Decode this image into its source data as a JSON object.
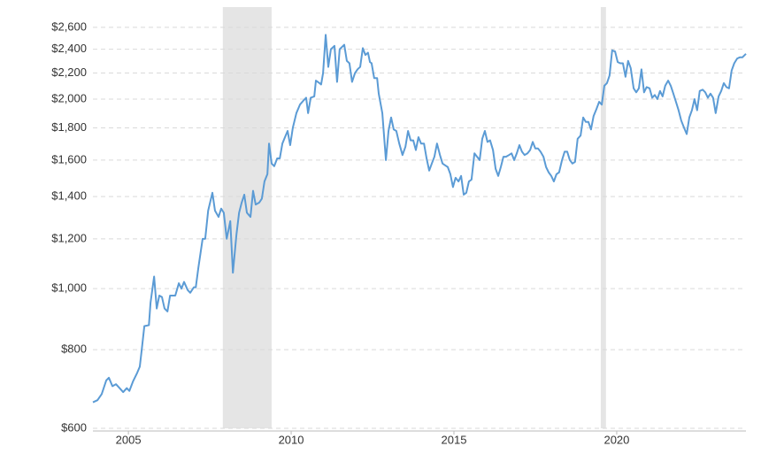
{
  "chart_data": {
    "type": "line",
    "log_scale": true,
    "grid": true,
    "color": "#5b9bd5",
    "band_color": "#e5e5e5",
    "xlim": [
      2003.91,
      2023.97
    ],
    "xticks": [
      2005,
      2010,
      2015,
      2020
    ],
    "ylim": [
      600,
      2800
    ],
    "yticks": [
      {
        "value": 600,
        "label": "$600"
      },
      {
        "value": 800,
        "label": "$800"
      },
      {
        "value": 1000,
        "label": "$1,000"
      },
      {
        "value": 1200,
        "label": "$1,200"
      },
      {
        "value": 1400,
        "label": "$1,400"
      },
      {
        "value": 1600,
        "label": "$1,600"
      },
      {
        "value": 1800,
        "label": "$1,800"
      },
      {
        "value": 2000,
        "label": "$2,000"
      },
      {
        "value": 2200,
        "label": "$2,200"
      },
      {
        "value": 2400,
        "label": "$2,400"
      },
      {
        "value": 2600,
        "label": "$2,600"
      }
    ],
    "shaded_ranges": [
      [
        2007.9,
        2009.4
      ],
      [
        2019.51,
        2019.67
      ]
    ],
    "x": [
      2003.91,
      2004.05,
      2004.18,
      2004.32,
      2004.4,
      2004.51,
      2004.62,
      2004.73,
      2004.84,
      2004.95,
      2005.03,
      2005.14,
      2005.27,
      2005.35,
      2005.41,
      2005.49,
      2005.63,
      2005.68,
      2005.79,
      2005.87,
      2005.95,
      2006.03,
      2006.11,
      2006.2,
      2006.28,
      2006.44,
      2006.55,
      2006.63,
      2006.71,
      2006.82,
      2006.9,
      2007.01,
      2007.07,
      2007.15,
      2007.28,
      2007.36,
      2007.45,
      2007.58,
      2007.66,
      2007.77,
      2007.85,
      2007.93,
      2008.02,
      2008.13,
      2008.21,
      2008.32,
      2008.4,
      2008.48,
      2008.56,
      2008.64,
      2008.75,
      2008.83,
      2008.91,
      2009.02,
      2009.1,
      2009.18,
      2009.27,
      2009.32,
      2009.4,
      2009.48,
      2009.57,
      2009.65,
      2009.73,
      2009.81,
      2009.89,
      2009.97,
      2010.05,
      2010.16,
      2010.27,
      2010.38,
      2010.46,
      2010.52,
      2010.6,
      2010.71,
      2010.76,
      2010.87,
      2010.92,
      2010.98,
      2011.06,
      2011.14,
      2011.22,
      2011.33,
      2011.41,
      2011.49,
      2011.63,
      2011.71,
      2011.79,
      2011.87,
      2011.96,
      2012.04,
      2012.12,
      2012.2,
      2012.28,
      2012.36,
      2012.42,
      2012.47,
      2012.55,
      2012.64,
      2012.69,
      2012.8,
      2012.91,
      2012.99,
      2013.07,
      2013.15,
      2013.23,
      2013.32,
      2013.42,
      2013.51,
      2013.59,
      2013.67,
      2013.75,
      2013.83,
      2013.91,
      2013.99,
      2014.08,
      2014.16,
      2014.24,
      2014.32,
      2014.4,
      2014.48,
      2014.57,
      2014.65,
      2014.73,
      2014.81,
      2014.89,
      2014.97,
      2015.05,
      2015.14,
      2015.22,
      2015.3,
      2015.38,
      2015.46,
      2015.54,
      2015.63,
      2015.71,
      2015.79,
      2015.87,
      2015.95,
      2016.03,
      2016.11,
      2016.2,
      2016.28,
      2016.36,
      2016.44,
      2016.52,
      2016.6,
      2016.69,
      2016.77,
      2016.85,
      2016.93,
      2017.01,
      2017.09,
      2017.17,
      2017.26,
      2017.34,
      2017.42,
      2017.5,
      2017.58,
      2017.66,
      2017.75,
      2017.83,
      2017.91,
      2017.99,
      2018.07,
      2018.15,
      2018.23,
      2018.32,
      2018.4,
      2018.48,
      2018.56,
      2018.64,
      2018.72,
      2018.8,
      2018.89,
      2018.97,
      2019.05,
      2019.13,
      2019.21,
      2019.29,
      2019.38,
      2019.46,
      2019.54,
      2019.62,
      2019.7,
      2019.78,
      2019.86,
      2019.95,
      2020.03,
      2020.11,
      2020.19,
      2020.27,
      2020.35,
      2020.43,
      2020.52,
      2020.6,
      2020.68,
      2020.76,
      2020.84,
      2020.92,
      2021.01,
      2021.09,
      2021.17,
      2021.25,
      2021.33,
      2021.41,
      2021.49,
      2021.58,
      2021.66,
      2021.74,
      2021.82,
      2021.9,
      2021.98,
      2022.07,
      2022.15,
      2022.23,
      2022.31,
      2022.39,
      2022.47,
      2022.55,
      2022.64,
      2022.72,
      2022.8,
      2022.88,
      2022.96,
      2023.04,
      2023.13,
      2023.21,
      2023.29,
      2023.37,
      2023.45,
      2023.53,
      2023.61,
      2023.7,
      2023.78,
      2023.86,
      2023.97
    ],
    "values": [
      660,
      665,
      680,
      715,
      722,
      700,
      705,
      695,
      685,
      695,
      688,
      712,
      735,
      752,
      800,
      872,
      875,
      950,
      1045,
      930,
      975,
      970,
      930,
      920,
      975,
      975,
      1020,
      1000,
      1025,
      995,
      985,
      1005,
      1005,
      1080,
      1200,
      1200,
      1330,
      1420,
      1330,
      1300,
      1340,
      1320,
      1200,
      1280,
      1060,
      1220,
      1320,
      1370,
      1410,
      1320,
      1300,
      1430,
      1360,
      1370,
      1390,
      1480,
      1520,
      1700,
      1580,
      1565,
      1610,
      1610,
      1700,
      1740,
      1780,
      1690,
      1800,
      1900,
      1960,
      1990,
      2010,
      1900,
      2010,
      2020,
      2140,
      2120,
      2110,
      2200,
      2530,
      2250,
      2400,
      2430,
      2130,
      2400,
      2440,
      2300,
      2280,
      2130,
      2200,
      2230,
      2250,
      2410,
      2350,
      2370,
      2290,
      2280,
      2160,
      2160,
      2040,
      1900,
      1600,
      1780,
      1870,
      1790,
      1780,
      1700,
      1630,
      1680,
      1780,
      1720,
      1720,
      1660,
      1740,
      1700,
      1700,
      1610,
      1540,
      1580,
      1620,
      1700,
      1630,
      1580,
      1570,
      1560,
      1520,
      1450,
      1500,
      1480,
      1510,
      1410,
      1420,
      1480,
      1490,
      1640,
      1620,
      1600,
      1730,
      1780,
      1710,
      1720,
      1660,
      1550,
      1510,
      1560,
      1620,
      1620,
      1630,
      1640,
      1600,
      1640,
      1690,
      1650,
      1630,
      1640,
      1660,
      1710,
      1670,
      1670,
      1650,
      1620,
      1560,
      1530,
      1510,
      1480,
      1520,
      1530,
      1600,
      1650,
      1650,
      1600,
      1580,
      1590,
      1730,
      1750,
      1870,
      1840,
      1840,
      1790,
      1880,
      1930,
      1980,
      1960,
      2100,
      2120,
      2180,
      2390,
      2380,
      2290,
      2280,
      2280,
      2170,
      2300,
      2240,
      2080,
      2050,
      2080,
      2230,
      2050,
      2090,
      2080,
      2010,
      2030,
      2000,
      2060,
      2020,
      2100,
      2140,
      2100,
      2040,
      1980,
      1920,
      1850,
      1800,
      1760,
      1870,
      1920,
      2000,
      1920,
      2060,
      2070,
      2050,
      2010,
      2040,
      2010,
      1900,
      2020,
      2060,
      2120,
      2090,
      2080,
      2220,
      2280,
      2320,
      2330,
      2330,
      2360
    ]
  }
}
